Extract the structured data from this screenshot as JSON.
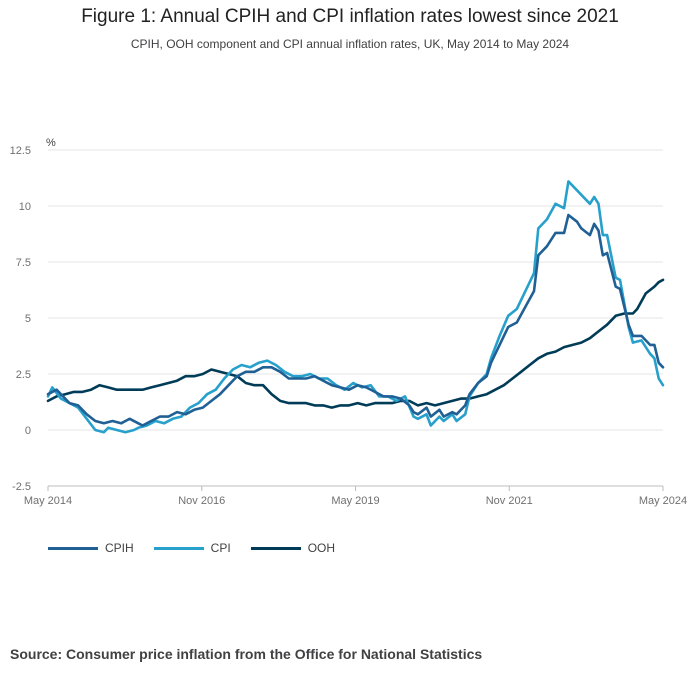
{
  "chart_data": {
    "type": "line",
    "title": "Figure 1: Annual CPIH and CPI inflation rates lowest since 2021",
    "subtitle": "CPIH, OOH component and CPI annual inflation rates, UK, May 2014 to May 2024",
    "ylabel": "%",
    "xlabel": "",
    "ylim": [
      -2.5,
      12.5
    ],
    "yticks": [
      "12.5",
      "10",
      "7.5",
      "5",
      "2.5",
      "0",
      "-2.5"
    ],
    "ytick_values": [
      12.5,
      10,
      7.5,
      5,
      2.5,
      0,
      -2.5
    ],
    "xticks": [
      "May 2014",
      "Nov 2016",
      "May 2019",
      "Nov 2021",
      "May 2024"
    ],
    "xtick_index": [
      0,
      30,
      60,
      90,
      120
    ],
    "x_start": "May 2014",
    "x_end": "May 2024",
    "series": [
      {
        "name": "CPIH",
        "color": "#206095",
        "points": [
          [
            0,
            1.6
          ],
          [
            2,
            1.8
          ],
          [
            4,
            1.4
          ],
          [
            5,
            1.2
          ],
          [
            7,
            1.1
          ],
          [
            9,
            0.7
          ],
          [
            11,
            0.4
          ],
          [
            13,
            0.3
          ],
          [
            15,
            0.4
          ],
          [
            17,
            0.3
          ],
          [
            19,
            0.5
          ],
          [
            21,
            0.3
          ],
          [
            22,
            0.2
          ],
          [
            24,
            0.4
          ],
          [
            26,
            0.6
          ],
          [
            28,
            0.6
          ],
          [
            30,
            0.8
          ],
          [
            32,
            0.7
          ],
          [
            34,
            0.9
          ],
          [
            36,
            1.0
          ],
          [
            38,
            1.3
          ],
          [
            40,
            1.6
          ],
          [
            42,
            2.0
          ],
          [
            44,
            2.4
          ],
          [
            46,
            2.6
          ],
          [
            48,
            2.6
          ],
          [
            50,
            2.8
          ],
          [
            52,
            2.8
          ],
          [
            54,
            2.6
          ],
          [
            56,
            2.3
          ],
          [
            58,
            2.3
          ],
          [
            60,
            2.3
          ],
          [
            62,
            2.4
          ],
          [
            64,
            2.2
          ],
          [
            66,
            2.0
          ],
          [
            68,
            1.9
          ],
          [
            70,
            1.8
          ],
          [
            72,
            2.0
          ],
          [
            74,
            1.9
          ],
          [
            76,
            1.7
          ],
          [
            78,
            1.5
          ],
          [
            80,
            1.5
          ],
          [
            82,
            1.4
          ],
          [
            84,
            1.1
          ],
          [
            85,
            0.8
          ],
          [
            86,
            0.7
          ],
          [
            88,
            1.0
          ],
          [
            89,
            0.6
          ],
          [
            91,
            0.9
          ],
          [
            92,
            0.6
          ],
          [
            94,
            0.8
          ],
          [
            95,
            0.7
          ],
          [
            97,
            1.1
          ],
          [
            98,
            1.6
          ],
          [
            100,
            2.1
          ],
          [
            102,
            2.4
          ],
          [
            103,
            3.0
          ],
          [
            105,
            3.8
          ],
          [
            107,
            4.6
          ],
          [
            109,
            4.8
          ],
          [
            111,
            5.5
          ],
          [
            113,
            6.2
          ],
          [
            114,
            7.8
          ],
          [
            116,
            8.2
          ],
          [
            118,
            8.8
          ],
          [
            120,
            8.8
          ],
          [
            121,
            9.6
          ],
          [
            123,
            9.3
          ],
          [
            124,
            9.0
          ],
          [
            126,
            8.7
          ],
          [
            127,
            9.2
          ],
          [
            128,
            8.9
          ],
          [
            129,
            7.8
          ],
          [
            130,
            7.9
          ],
          [
            132,
            6.4
          ],
          [
            133,
            6.3
          ],
          [
            135,
            4.7
          ],
          [
            136,
            4.2
          ],
          [
            138,
            4.2
          ],
          [
            140,
            3.8
          ],
          [
            141,
            3.8
          ],
          [
            142,
            3.0
          ],
          [
            143,
            2.8
          ]
        ]
      },
      {
        "name": "CPI",
        "color": "#27a0cc",
        "points": [
          [
            0,
            1.5
          ],
          [
            1,
            1.9
          ],
          [
            3,
            1.4
          ],
          [
            5,
            1.2
          ],
          [
            7,
            1.0
          ],
          [
            9,
            0.5
          ],
          [
            11,
            0.0
          ],
          [
            13,
            -0.1
          ],
          [
            14,
            0.1
          ],
          [
            16,
            0.0
          ],
          [
            18,
            -0.1
          ],
          [
            20,
            0.0
          ],
          [
            21,
            0.1
          ],
          [
            23,
            0.2
          ],
          [
            25,
            0.4
          ],
          [
            27,
            0.3
          ],
          [
            29,
            0.5
          ],
          [
            31,
            0.6
          ],
          [
            33,
            1.0
          ],
          [
            35,
            1.2
          ],
          [
            37,
            1.6
          ],
          [
            39,
            1.8
          ],
          [
            41,
            2.3
          ],
          [
            43,
            2.7
          ],
          [
            45,
            2.9
          ],
          [
            47,
            2.8
          ],
          [
            49,
            3.0
          ],
          [
            51,
            3.1
          ],
          [
            53,
            2.9
          ],
          [
            55,
            2.6
          ],
          [
            57,
            2.4
          ],
          [
            59,
            2.4
          ],
          [
            61,
            2.5
          ],
          [
            63,
            2.3
          ],
          [
            65,
            2.3
          ],
          [
            67,
            2.0
          ],
          [
            69,
            1.8
          ],
          [
            71,
            2.1
          ],
          [
            73,
            1.9
          ],
          [
            75,
            2.0
          ],
          [
            77,
            1.5
          ],
          [
            79,
            1.5
          ],
          [
            81,
            1.3
          ],
          [
            83,
            1.5
          ],
          [
            85,
            0.6
          ],
          [
            86,
            0.5
          ],
          [
            88,
            0.7
          ],
          [
            89,
            0.2
          ],
          [
            91,
            0.6
          ],
          [
            92,
            0.4
          ],
          [
            94,
            0.7
          ],
          [
            95,
            0.4
          ],
          [
            97,
            0.7
          ],
          [
            98,
            1.5
          ],
          [
            100,
            2.1
          ],
          [
            102,
            2.5
          ],
          [
            103,
            3.2
          ],
          [
            105,
            4.2
          ],
          [
            107,
            5.1
          ],
          [
            109,
            5.4
          ],
          [
            111,
            6.2
          ],
          [
            113,
            7.0
          ],
          [
            114,
            9.0
          ],
          [
            116,
            9.4
          ],
          [
            118,
            10.1
          ],
          [
            120,
            9.9
          ],
          [
            121,
            11.1
          ],
          [
            123,
            10.7
          ],
          [
            124,
            10.5
          ],
          [
            126,
            10.1
          ],
          [
            127,
            10.4
          ],
          [
            128,
            10.1
          ],
          [
            129,
            8.7
          ],
          [
            130,
            8.7
          ],
          [
            132,
            6.8
          ],
          [
            133,
            6.7
          ],
          [
            135,
            4.6
          ],
          [
            136,
            3.9
          ],
          [
            138,
            4.0
          ],
          [
            140,
            3.4
          ],
          [
            141,
            3.2
          ],
          [
            142,
            2.3
          ],
          [
            143,
            2.0
          ]
        ]
      },
      {
        "name": "OOH",
        "color": "#003c57",
        "points": [
          [
            0,
            1.3
          ],
          [
            2,
            1.5
          ],
          [
            4,
            1.6
          ],
          [
            6,
            1.7
          ],
          [
            8,
            1.7
          ],
          [
            10,
            1.8
          ],
          [
            12,
            2.0
          ],
          [
            14,
            1.9
          ],
          [
            16,
            1.8
          ],
          [
            18,
            1.8
          ],
          [
            20,
            1.8
          ],
          [
            22,
            1.8
          ],
          [
            24,
            1.9
          ],
          [
            26,
            2.0
          ],
          [
            28,
            2.1
          ],
          [
            30,
            2.2
          ],
          [
            32,
            2.4
          ],
          [
            34,
            2.4
          ],
          [
            36,
            2.5
          ],
          [
            38,
            2.7
          ],
          [
            40,
            2.6
          ],
          [
            42,
            2.5
          ],
          [
            44,
            2.4
          ],
          [
            46,
            2.1
          ],
          [
            48,
            2.0
          ],
          [
            50,
            2.0
          ],
          [
            52,
            1.6
          ],
          [
            54,
            1.3
          ],
          [
            56,
            1.2
          ],
          [
            58,
            1.2
          ],
          [
            60,
            1.2
          ],
          [
            62,
            1.1
          ],
          [
            64,
            1.1
          ],
          [
            66,
            1.0
          ],
          [
            68,
            1.1
          ],
          [
            70,
            1.1
          ],
          [
            72,
            1.2
          ],
          [
            74,
            1.1
          ],
          [
            76,
            1.2
          ],
          [
            78,
            1.2
          ],
          [
            80,
            1.2
          ],
          [
            82,
            1.3
          ],
          [
            84,
            1.3
          ],
          [
            86,
            1.1
          ],
          [
            88,
            1.2
          ],
          [
            90,
            1.1
          ],
          [
            92,
            1.2
          ],
          [
            94,
            1.3
          ],
          [
            96,
            1.4
          ],
          [
            98,
            1.4
          ],
          [
            100,
            1.5
          ],
          [
            102,
            1.6
          ],
          [
            104,
            1.8
          ],
          [
            106,
            2.0
          ],
          [
            108,
            2.3
          ],
          [
            110,
            2.6
          ],
          [
            112,
            2.9
          ],
          [
            114,
            3.2
          ],
          [
            116,
            3.4
          ],
          [
            118,
            3.5
          ],
          [
            120,
            3.7
          ],
          [
            122,
            3.8
          ],
          [
            124,
            3.9
          ],
          [
            126,
            4.1
          ],
          [
            128,
            4.4
          ],
          [
            130,
            4.7
          ],
          [
            132,
            5.1
          ],
          [
            134,
            5.2
          ],
          [
            136,
            5.2
          ],
          [
            137,
            5.4
          ],
          [
            139,
            6.1
          ],
          [
            141,
            6.4
          ],
          [
            142,
            6.6
          ],
          [
            143,
            6.7
          ]
        ]
      }
    ]
  },
  "legend": {
    "cpih_label": "CPIH",
    "cpi_label": "CPI",
    "ooh_label": "OOH"
  },
  "source": "Source: Consumer price inflation from the Office for National Statistics"
}
